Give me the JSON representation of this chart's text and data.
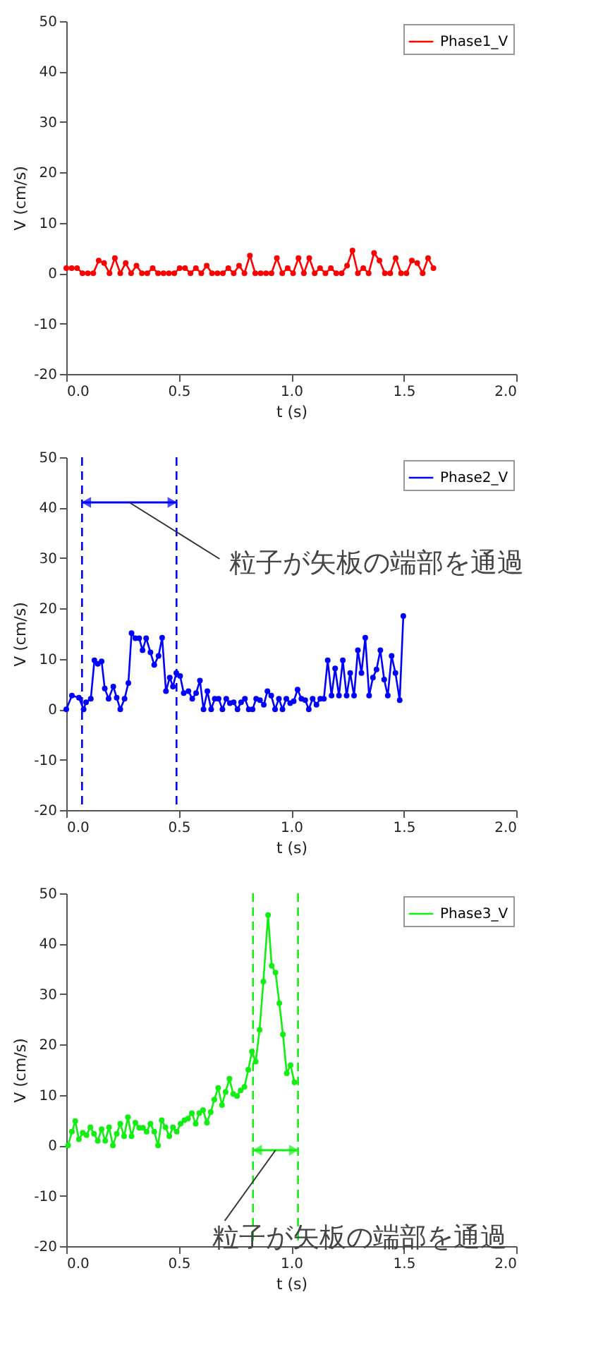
{
  "chart_data": [
    {
      "type": "line",
      "xlabel": "t (s)",
      "ylabel": "V (cm/s)",
      "xlim": [
        0,
        2
      ],
      "xticks": [
        {
          "value": 0,
          "label": "0.0"
        },
        {
          "value": 0.5,
          "label": "0.5"
        },
        {
          "value": 1,
          "label": "1.0"
        },
        {
          "value": 1.5,
          "label": "1.5"
        },
        {
          "value": 2,
          "label": "2.0"
        }
      ],
      "ylim": [
        -20,
        50
      ],
      "yticks": [
        -20,
        -10,
        0,
        10,
        20,
        30,
        40,
        50
      ],
      "legend": "top right",
      "marker": "circle",
      "line_style": "solid",
      "grid": false,
      "series": [
        {
          "name": "Phase1_V",
          "color": "#ff0000",
          "x": [
            0,
            0.024,
            0.048,
            0.072,
            0.096,
            0.12,
            0.144,
            0.168,
            0.192,
            0.216,
            0.24,
            0.264,
            0.288,
            0.312,
            0.336,
            0.36,
            0.384,
            0.408,
            0.432,
            0.456,
            0.48,
            0.504,
            0.528,
            0.552,
            0.576,
            0.6,
            0.624,
            0.648,
            0.672,
            0.696,
            0.72,
            0.744,
            0.768,
            0.792,
            0.816,
            0.84,
            0.864,
            0.888,
            0.912,
            0.936,
            0.96,
            0.984,
            1.008,
            1.032,
            1.056,
            1.08,
            1.104,
            1.128,
            1.152,
            1.176,
            1.2,
            1.224,
            1.248,
            1.272,
            1.296,
            1.32,
            1.344,
            1.368,
            1.392,
            1.416,
            1.44,
            1.464,
            1.488,
            1.512,
            1.536,
            1.56,
            1.584,
            1.608,
            1.632
          ],
          "values": [
            1,
            1,
            1,
            0,
            0,
            0,
            2.5,
            2,
            0,
            3,
            0,
            2,
            0,
            1.5,
            0,
            0,
            1,
            0,
            0,
            0,
            0,
            1,
            1,
            0,
            1,
            0,
            1.5,
            0,
            0,
            0,
            1,
            0,
            1.5,
            0,
            3.5,
            0,
            0,
            0,
            0,
            3,
            0,
            1,
            0,
            3,
            0,
            3,
            0,
            1,
            0,
            1,
            0,
            0,
            1.5,
            4.5,
            0,
            1,
            0,
            4,
            2.5,
            0,
            0,
            3,
            0,
            0,
            2.5,
            2,
            0,
            3,
            1
          ]
        }
      ]
    },
    {
      "type": "line",
      "xlabel": "t (s)",
      "ylabel": "V (cm/s)",
      "xlim": [
        0,
        2
      ],
      "xticks": [
        {
          "value": 0,
          "label": "0.0"
        },
        {
          "value": 0.5,
          "label": "0.5"
        },
        {
          "value": 1,
          "label": "1.0"
        },
        {
          "value": 1.5,
          "label": "1.5"
        },
        {
          "value": 2,
          "label": "2.0"
        }
      ],
      "ylim": [
        -20,
        50
      ],
      "yticks": [
        -20,
        -10,
        0,
        10,
        20,
        30,
        40,
        50
      ],
      "legend": "top right",
      "marker": "circle",
      "line_style": "solid",
      "grid": false,
      "series": [
        {
          "name": "Phase2_V",
          "color": "#0000ff",
          "x": [
            0,
            0.025,
            0.056,
            0.077,
            0.088,
            0.109,
            0.125,
            0.14,
            0.157,
            0.171,
            0.188,
            0.209,
            0.224,
            0.24,
            0.259,
            0.276,
            0.29,
            0.307,
            0.324,
            0.339,
            0.355,
            0.374,
            0.391,
            0.41,
            0.426,
            0.443,
            0.46,
            0.474,
            0.489,
            0.506,
            0.522,
            0.543,
            0.56,
            0.577,
            0.594,
            0.61,
            0.627,
            0.644,
            0.66,
            0.677,
            0.694,
            0.711,
            0.727,
            0.744,
            0.761,
            0.777,
            0.794,
            0.811,
            0.828,
            0.844,
            0.861,
            0.878,
            0.894,
            0.911,
            0.928,
            0.945,
            0.961,
            0.978,
            0.995,
            1.011,
            1.028,
            1.045,
            1.062,
            1.078,
            1.095,
            1.112,
            1.129,
            1.145,
            1.162,
            1.179,
            1.195,
            1.212,
            1.229,
            1.246,
            1.262,
            1.279,
            1.296,
            1.312,
            1.329,
            1.346,
            1.363,
            1.379,
            1.396,
            1.413,
            1.429,
            1.446,
            1.463,
            1.482,
            1.498
          ],
          "values": [
            0,
            2.7,
            2.3,
            0,
            1.4,
            2.1,
            9.7,
            9.0,
            9.5,
            4.1,
            2.1,
            4.5,
            2.3,
            0,
            2.1,
            5.2,
            15.1,
            14.1,
            14.1,
            11.7,
            14.1,
            11.3,
            8.8,
            10.6,
            14.2,
            3.6,
            6.3,
            4.5,
            7.2,
            6.6,
            3.2,
            3.6,
            2.1,
            3.2,
            5.7,
            0,
            3.6,
            0,
            2.1,
            2.1,
            0,
            2.1,
            1.2,
            1.4,
            0,
            1.4,
            2.1,
            0,
            0,
            2.1,
            1.8,
            0.9,
            3.6,
            2.7,
            0,
            2.1,
            0,
            2.1,
            1.2,
            1.6,
            3.9,
            2.1,
            1.8,
            0,
            2.1,
            0.9,
            2.1,
            2.1,
            9.7,
            2.7,
            8.1,
            2.7,
            9.7,
            2.7,
            7.2,
            2.7,
            11.7,
            7.2,
            14.2,
            2.7,
            6.3,
            7.9,
            11.7,
            5.9,
            2.7,
            10.6,
            7.2,
            1.8,
            18.5
          ]
        }
      ],
      "ref_lines": [
        {
          "axis": "x",
          "value": 0.07,
          "color": "#0000ff",
          "line_style": "dashed"
        },
        {
          "axis": "x",
          "value": 0.49,
          "color": "#0000ff",
          "line_style": "dashed"
        }
      ],
      "annotations": [
        "粒子が矢板の端部を通過"
      ]
    },
    {
      "type": "line",
      "xlabel": "t (s)",
      "ylabel": "V (cm/s)",
      "xlim": [
        0,
        2
      ],
      "xticks": [
        {
          "value": 0,
          "label": "0.0"
        },
        {
          "value": 0.5,
          "label": "0.5"
        },
        {
          "value": 1,
          "label": "1.0"
        },
        {
          "value": 1.5,
          "label": "1.5"
        },
        {
          "value": 2,
          "label": "2.0"
        }
      ],
      "ylim": [
        -20,
        50
      ],
      "yticks": [
        -20,
        -10,
        0,
        10,
        20,
        30,
        40,
        50
      ],
      "legend": "top right",
      "marker": "circle",
      "line_style": "solid",
      "grid": false,
      "series": [
        {
          "name": "Phase3_V",
          "color": "#11ee11",
          "x": [
            0.008,
            0.025,
            0.04,
            0.056,
            0.073,
            0.09,
            0.107,
            0.123,
            0.14,
            0.157,
            0.173,
            0.19,
            0.207,
            0.224,
            0.24,
            0.257,
            0.274,
            0.29,
            0.307,
            0.324,
            0.341,
            0.357,
            0.374,
            0.391,
            0.408,
            0.424,
            0.441,
            0.458,
            0.474,
            0.491,
            0.508,
            0.525,
            0.541,
            0.558,
            0.575,
            0.591,
            0.608,
            0.625,
            0.642,
            0.658,
            0.675,
            0.692,
            0.708,
            0.725,
            0.742,
            0.759,
            0.775,
            0.792,
            0.809,
            0.825,
            0.842,
            0.859,
            0.876,
            0.897,
            0.913,
            0.93,
            0.947,
            0.963,
            0.98,
            0.997,
            1.014
          ],
          "values": [
            0,
            2.7,
            4.8,
            1.2,
            2.5,
            2.0,
            3.6,
            2.3,
            0.9,
            3.2,
            0.9,
            3.6,
            0,
            2.3,
            4.3,
            1.8,
            5.6,
            1.8,
            4.5,
            3.5,
            3.5,
            2.7,
            4.3,
            2.7,
            0,
            5.0,
            3.6,
            1.8,
            3.6,
            2.7,
            4.3,
            5.0,
            5.3,
            6.4,
            4.3,
            6.4,
            7.0,
            4.5,
            6.6,
            9.1,
            11.4,
            8.0,
            10.6,
            13.2,
            10.2,
            9.8,
            10.9,
            11.6,
            15.0,
            18.6,
            16.6,
            22.9,
            32.5,
            45.7,
            35.6,
            34.3,
            28.2,
            22.0,
            14.3,
            15.9,
            12.5
          ]
        }
      ],
      "ref_lines": [
        {
          "axis": "x",
          "value": 0.83,
          "color": "#11ee11",
          "line_style": "dashed"
        },
        {
          "axis": "x",
          "value": 1.03,
          "color": "#11ee11",
          "line_style": "dashed"
        }
      ],
      "annotations": [
        "粒子が矢板の端部を通過"
      ]
    }
  ]
}
